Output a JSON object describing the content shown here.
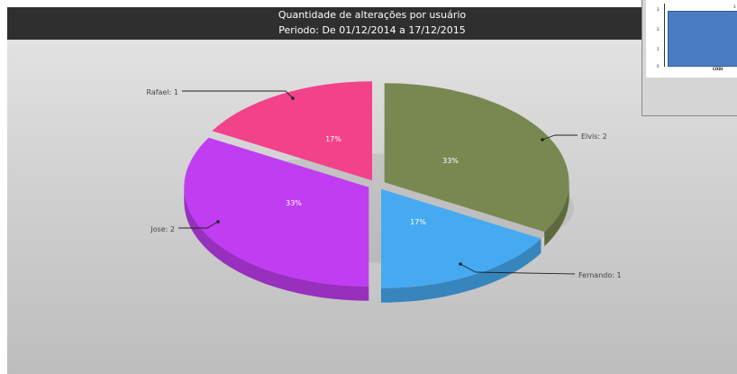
{
  "chart_data": {
    "type": "pie",
    "title": "Quantidade de alterações por usuário",
    "subtitle": "Periodo: De 01/12/2014 a 17/12/2015",
    "style": "3d-exploded",
    "slices": [
      {
        "label": "Elvis",
        "value": 2,
        "percent": "33%",
        "callout": "Elvis: 2",
        "color": "#788850"
      },
      {
        "label": "Fernando",
        "value": 1,
        "percent": "17%",
        "callout": "Fernando: 1",
        "color": "#45aaf2"
      },
      {
        "label": "Jose",
        "value": 2,
        "percent": "33%",
        "callout": "Jose: 2",
        "color": "#c13df2"
      },
      {
        "label": "Rafael",
        "value": 1,
        "percent": "17%",
        "callout": "Rafael: 1",
        "color": "#f2428a"
      }
    ],
    "legend": "none",
    "grid": false
  },
  "thumbnail": {
    "y_ticks": [
      "3",
      "2",
      "1",
      "0"
    ],
    "bar_value": "3",
    "x_label": "CODI"
  }
}
